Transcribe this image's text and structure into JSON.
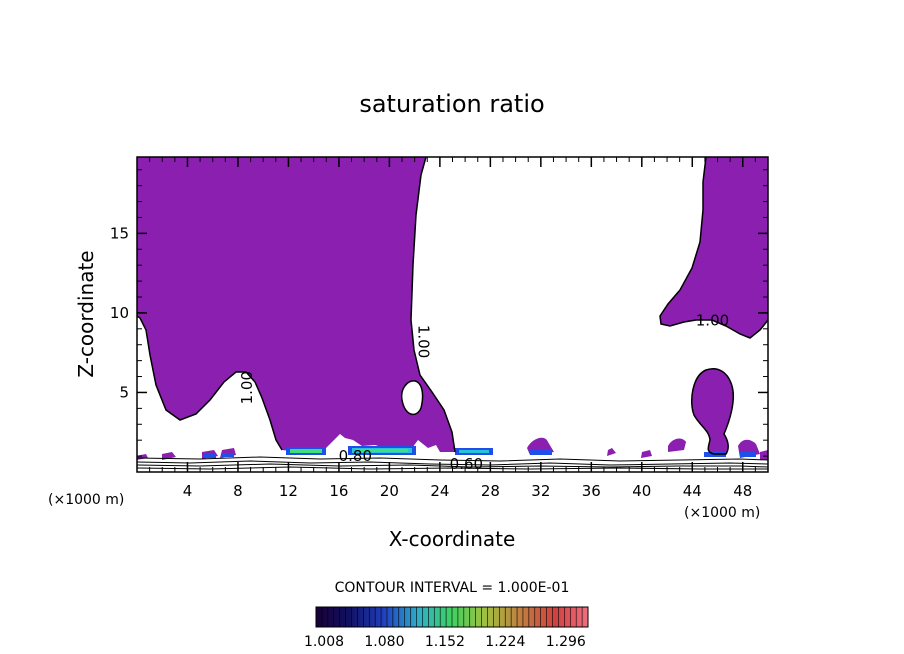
{
  "chart_data": {
    "type": "heatmap",
    "title": "saturation ratio",
    "xlabel": "X-coordinate",
    "ylabel": "Z-coordinate",
    "x_unit_left": "(×1000 m)",
    "x_unit_right": "(×1000 m)",
    "xlim": [
      0,
      50
    ],
    "ylim": [
      0,
      19.8
    ],
    "xticks": [
      4,
      8,
      12,
      16,
      20,
      24,
      28,
      32,
      36,
      40,
      44,
      48
    ],
    "yticks": [
      5,
      10,
      15
    ],
    "contour_labels": [
      {
        "text": "1.00",
        "x": 22.3,
        "y": 8.2
      },
      {
        "text": "1.00",
        "x": 9.1,
        "y": 5.3
      },
      {
        "text": "1.00",
        "x": 45.6,
        "y": 9.2
      },
      {
        "text": "0.80",
        "x": 17.3,
        "y": 0.7
      },
      {
        "text": "0.60",
        "x": 26.1,
        "y": 0.2
      }
    ],
    "contour_interval_text": "CONTOUR INTERVAL = 1.000E-01",
    "colorbar": {
      "tick_labels": [
        "1.008",
        "1.080",
        "1.152",
        "1.224",
        "1.296"
      ],
      "range": [
        1.008,
        1.332
      ]
    },
    "colors": {
      "fill": "#8a1fb0",
      "blue": "#1f4fe8",
      "cyan": "#29c2d8",
      "green": "#3fe07a"
    }
  }
}
